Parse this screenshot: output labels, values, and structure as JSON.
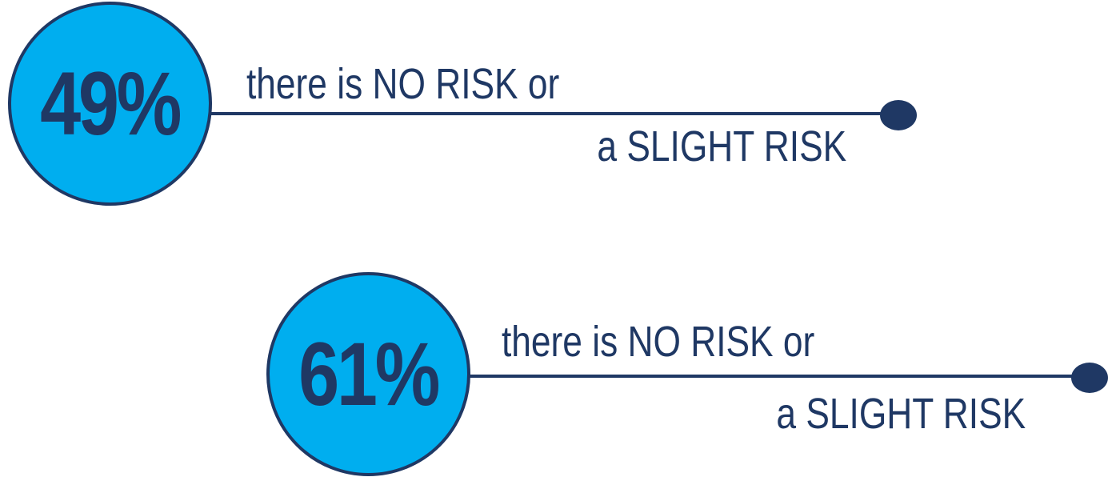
{
  "stats": [
    {
      "percent": "49%",
      "line1": "there is NO RISK or",
      "line2": "a SLIGHT RISK"
    },
    {
      "percent": "61%",
      "line1": "there is NO RISK or",
      "line2": "a SLIGHT RISK"
    }
  ],
  "colors": {
    "circle_fill": "#00aeef",
    "navy": "#1f3864"
  }
}
